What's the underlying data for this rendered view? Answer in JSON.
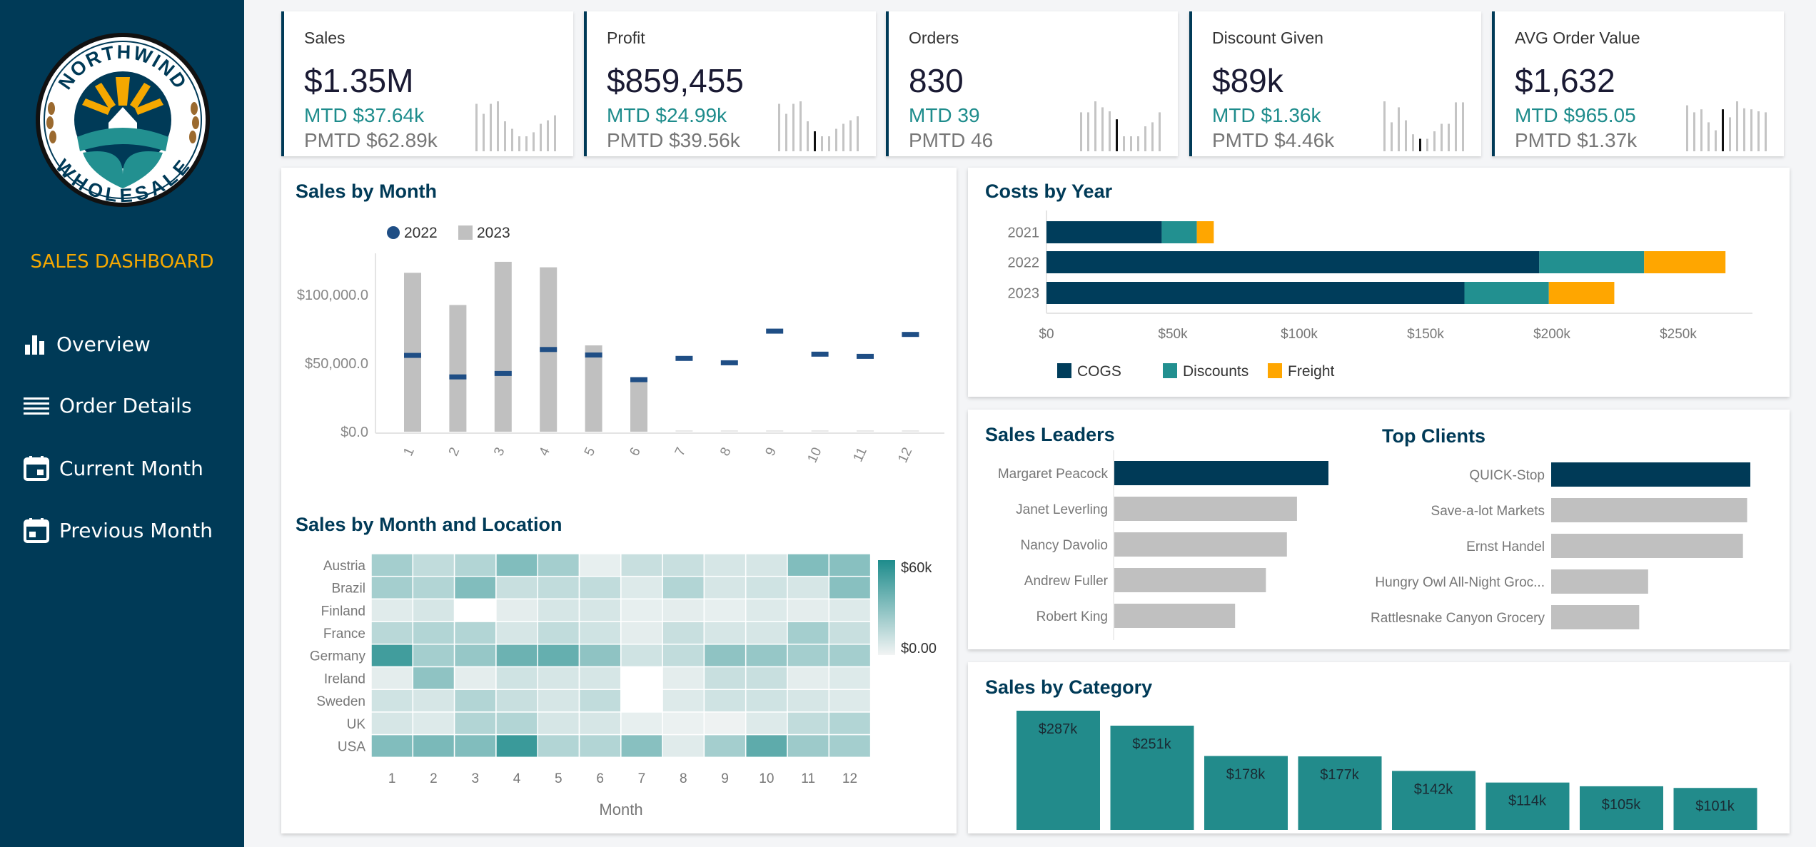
{
  "sidebar": {
    "logo": {
      "top_text": "NORTHWIND",
      "bottom_text": "WHOLESALE"
    },
    "title": "SALES DASHBOARD",
    "title_color": "#f5a800",
    "items": [
      {
        "label": "Overview",
        "icon": "bar-chart-icon"
      },
      {
        "label": "Order Details",
        "icon": "list-icon"
      },
      {
        "label": "Current Month",
        "icon": "calendar-icon"
      },
      {
        "label": "Previous Month",
        "icon": "calendar-icon"
      }
    ]
  },
  "kpis": [
    {
      "title": "Sales",
      "value": "$1.35M",
      "mtd": "MTD $37.64k",
      "pmtd": "PMTD $62.89k",
      "sparkline": [
        0.95,
        0.75,
        0.95,
        1.0,
        0.6,
        0.45,
        0.3,
        0.3,
        0.38,
        0.55,
        0.62,
        0.72
      ],
      "highlight_index": -1
    },
    {
      "title": "Profit",
      "value": "$859,455",
      "mtd": "MTD $24.99k",
      "pmtd": "PMTD $39.56k",
      "sparkline": [
        0.95,
        0.75,
        0.95,
        1.0,
        0.6,
        0.4,
        0.3,
        0.3,
        0.45,
        0.55,
        0.62,
        0.7
      ],
      "highlight_index": 5
    },
    {
      "title": "Orders",
      "value": "830",
      "mtd": "MTD 39",
      "pmtd": "PMTD 46",
      "sparkline": [
        0.78,
        0.78,
        1.0,
        0.88,
        0.8,
        0.64,
        0.3,
        0.3,
        0.3,
        0.5,
        0.58,
        0.78
      ],
      "highlight_index": 5
    },
    {
      "title": "Discount Given",
      "value": "$89k",
      "mtd": "MTD $1.36k",
      "pmtd": "PMTD $4.46k",
      "sparkline": [
        1.0,
        0.58,
        0.88,
        0.62,
        0.34,
        0.25,
        0.25,
        0.4,
        0.55,
        0.55,
        0.98,
        0.98
      ],
      "highlight_index": 5
    },
    {
      "title": "AVG Order Value",
      "value": "$1,632",
      "mtd": "MTD $965.05",
      "pmtd": "PMTD $1.37k",
      "sparkline": [
        0.92,
        0.78,
        0.84,
        0.58,
        0.42,
        0.84,
        0.68,
        1.0,
        0.86,
        0.84,
        0.8,
        0.78
      ],
      "highlight_index": 5
    }
  ],
  "sales_by_month": {
    "title": "Sales by Month",
    "chart_data": {
      "type": "bar",
      "categories": [
        "1",
        "2",
        "3",
        "4",
        "5",
        "6",
        "7",
        "8",
        "9",
        "10",
        "11",
        "12"
      ],
      "series": [
        {
          "name": "2022",
          "type": "marker",
          "color": "#1f4e85",
          "values": [
            55700,
            40000,
            42500,
            60000,
            56000,
            38000,
            53500,
            50300,
            73400,
            56600,
            55000,
            71000
          ]
        },
        {
          "name": "2023",
          "type": "bar",
          "color": "#c0c0c0",
          "values": [
            116000,
            92500,
            124000,
            120000,
            63000,
            37000,
            0,
            0,
            0,
            0,
            0,
            0
          ]
        }
      ],
      "yticks": [
        "$0.0",
        "$50,000.0",
        "$100,000.0"
      ],
      "ytick_values": [
        0,
        50000,
        100000
      ],
      "ylim": [
        0,
        130000
      ],
      "legend_placement": "top"
    }
  },
  "sales_by_location": {
    "title": "Sales by Month and Location",
    "chart_data": {
      "type": "heatmap",
      "xlabel": "Month",
      "x": [
        "1",
        "2",
        "3",
        "4",
        "5",
        "6",
        "7",
        "8",
        "9",
        "10",
        "11",
        "12"
      ],
      "y": [
        "Austria",
        "Brazil",
        "Finland",
        "France",
        "Germany",
        "Ireland",
        "Sweden",
        "UK",
        "USA"
      ],
      "values_k": [
        [
          22,
          14,
          18,
          32,
          22,
          3,
          12,
          12,
          8,
          8,
          32,
          30
        ],
        [
          22,
          18,
          32,
          12,
          14,
          14,
          6,
          18,
          8,
          10,
          8,
          30
        ],
        [
          5,
          8,
          null,
          4,
          8,
          8,
          3,
          4,
          3,
          6,
          4,
          6
        ],
        [
          16,
          18,
          18,
          8,
          14,
          10,
          4,
          12,
          8,
          8,
          22,
          12
        ],
        [
          50,
          22,
          26,
          38,
          40,
          28,
          10,
          14,
          28,
          26,
          22,
          22
        ],
        [
          4,
          28,
          4,
          10,
          8,
          8,
          null,
          4,
          12,
          12,
          4,
          6
        ],
        [
          10,
          8,
          18,
          12,
          8,
          14,
          null,
          6,
          10,
          10,
          8,
          6
        ],
        [
          8,
          6,
          18,
          18,
          8,
          8,
          3,
          2,
          1,
          6,
          14,
          18
        ],
        [
          32,
          34,
          32,
          52,
          18,
          18,
          30,
          5,
          22,
          42,
          24,
          22
        ]
      ],
      "scale_min_label": "$0.00",
      "scale_max_label": "$60k",
      "scale_range_k": [
        0,
        60
      ],
      "color_low": "#f2f4f4",
      "color_high": "#1e8c8c"
    }
  },
  "costs_by_year": {
    "title": "Costs by Year",
    "chart_data": {
      "type": "bar",
      "orientation": "horizontal",
      "stacked": true,
      "categories": [
        "2021",
        "2022",
        "2023"
      ],
      "series": [
        {
          "name": "COGS",
          "color": "#003d5b",
          "values": [
            45600,
            195000,
            165400
          ]
        },
        {
          "name": "Discounts",
          "color": "#229090",
          "values": [
            13900,
            41500,
            33400
          ]
        },
        {
          "name": "Freight",
          "color": "#ffa600",
          "values": [
            6700,
            32200,
            25900
          ]
        }
      ],
      "xticks": [
        "$0",
        "$50k",
        "$100k",
        "$150k",
        "$200k",
        "$250k"
      ],
      "xtick_values": [
        0,
        50000,
        100000,
        150000,
        200000,
        250000
      ],
      "xlim": [
        0,
        280000
      ],
      "legend_placement": "bottom"
    }
  },
  "sales_leaders": {
    "title": "Sales Leaders",
    "chart_data": {
      "type": "bar",
      "orientation": "horizontal",
      "categories": [
        "Margaret Peacock",
        "Janet Leverling",
        "Nancy Davolio",
        "Andrew Fuller",
        "Robert King"
      ],
      "values_relative": [
        1.0,
        0.853,
        0.806,
        0.708,
        0.564
      ],
      "highlight_color": "#003a57",
      "color": "#c0c0c0"
    }
  },
  "top_clients": {
    "title": "Top Clients",
    "chart_data": {
      "type": "bar",
      "orientation": "horizontal",
      "categories": [
        "QUICK-Stop",
        "Save-a-lot Markets",
        "Ernst Handel",
        "Hungry Owl All-Night Groc...",
        "Rattlesnake Canyon Grocery"
      ],
      "values_relative": [
        1.0,
        0.984,
        0.963,
        0.487,
        0.442
      ],
      "highlight_color": "#003a57",
      "color": "#c0c0c0"
    }
  },
  "sales_by_category": {
    "title": "Sales by Category",
    "chart_data": {
      "type": "bar",
      "values": [
        287,
        251,
        178,
        177,
        142,
        114,
        105,
        101
      ],
      "labels": [
        "$287k",
        "$251k",
        "$178k",
        "$177k",
        "$142k",
        "$114k",
        "$105k",
        "$101k"
      ],
      "unit": "k",
      "color": "#228b8b"
    }
  }
}
